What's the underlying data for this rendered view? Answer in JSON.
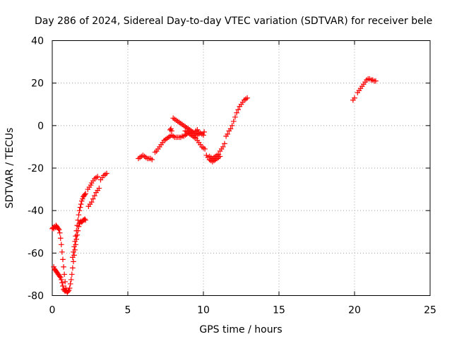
{
  "chart_data": {
    "type": "scatter",
    "title": "Day 286 of 2024, Sidereal Day-to-day VTEC variation (SDTVAR) for receiver bele",
    "xlabel": "GPS time / hours",
    "ylabel": "SDTVAR / TECUs",
    "xlim": [
      0,
      25
    ],
    "ylim": [
      -80,
      40
    ],
    "xticks": [
      0,
      5,
      10,
      15,
      20,
      25
    ],
    "yticks": [
      -80,
      -60,
      -40,
      -20,
      0,
      20,
      40
    ],
    "xtick_labels": [
      "0",
      "5",
      "10",
      "15",
      "20",
      "25"
    ],
    "ytick_labels": [
      "-80",
      "-60",
      "-40",
      "-20",
      "0",
      "20",
      "40"
    ],
    "grid": true,
    "marker": "+",
    "color": "#ff0000",
    "series": [
      {
        "name": "SDTVAR",
        "points": [
          [
            0.0,
            -48.5
          ],
          [
            0.05,
            -48.0
          ],
          [
            0.1,
            -48.5
          ],
          [
            0.15,
            -47.5
          ],
          [
            0.2,
            -48.0
          ],
          [
            0.25,
            -47.0
          ],
          [
            0.3,
            -47.5
          ],
          [
            0.35,
            -48.0
          ],
          [
            0.4,
            -48.5
          ],
          [
            0.45,
            -49.0
          ],
          [
            0.5,
            -50.5
          ],
          [
            0.55,
            -53.0
          ],
          [
            0.6,
            -56.0
          ],
          [
            0.65,
            -59.5
          ],
          [
            0.7,
            -63.0
          ],
          [
            0.75,
            -66.5
          ],
          [
            0.8,
            -70.0
          ],
          [
            0.85,
            -73.5
          ],
          [
            0.9,
            -76.5
          ],
          [
            0.95,
            -78.0
          ],
          [
            1.0,
            -78.5
          ],
          [
            1.05,
            -78.0
          ],
          [
            1.1,
            -77.5
          ],
          [
            0.1,
            -66.5
          ],
          [
            0.15,
            -67.5
          ],
          [
            0.2,
            -68.0
          ],
          [
            0.25,
            -68.5
          ],
          [
            0.3,
            -69.0
          ],
          [
            0.35,
            -69.5
          ],
          [
            0.4,
            -70.0
          ],
          [
            0.45,
            -70.5
          ],
          [
            0.5,
            -71.0
          ],
          [
            0.55,
            -71.5
          ],
          [
            0.6,
            -72.5
          ],
          [
            0.65,
            -74.0
          ],
          [
            0.7,
            -75.5
          ],
          [
            0.75,
            -77.0
          ],
          [
            0.8,
            -77.5
          ],
          [
            0.85,
            -78.0
          ],
          [
            0.9,
            -77.5
          ],
          [
            1.15,
            -76.5
          ],
          [
            1.2,
            -74.5
          ],
          [
            1.25,
            -72.5
          ],
          [
            1.3,
            -70.0
          ],
          [
            1.35,
            -67.0
          ],
          [
            1.4,
            -64.0
          ],
          [
            1.45,
            -61.0
          ],
          [
            1.5,
            -58.5
          ],
          [
            1.55,
            -56.0
          ],
          [
            1.6,
            -53.5
          ],
          [
            1.65,
            -51.5
          ],
          [
            1.7,
            -49.5
          ],
          [
            1.75,
            -47.5
          ],
          [
            1.8,
            -46.0
          ],
          [
            1.85,
            -45.5
          ],
          [
            1.9,
            -45.0
          ],
          [
            1.95,
            -45.5
          ],
          [
            2.0,
            -45.0
          ],
          [
            2.05,
            -44.5
          ],
          [
            2.1,
            -44.5
          ],
          [
            2.15,
            -44.0
          ],
          [
            2.2,
            -44.5
          ],
          [
            1.35,
            -62.0
          ],
          [
            1.4,
            -59.5
          ],
          [
            1.45,
            -57.0
          ],
          [
            1.5,
            -54.5
          ],
          [
            1.55,
            -52.0
          ],
          [
            1.6,
            -49.5
          ],
          [
            1.65,
            -47.0
          ],
          [
            1.7,
            -44.5
          ],
          [
            1.75,
            -42.0
          ],
          [
            1.8,
            -40.0
          ],
          [
            1.85,
            -38.5
          ],
          [
            1.9,
            -37.0
          ],
          [
            1.95,
            -35.5
          ],
          [
            2.0,
            -34.5
          ],
          [
            2.05,
            -33.5
          ],
          [
            2.1,
            -33.0
          ],
          [
            2.15,
            -32.5
          ],
          [
            2.2,
            -32.0
          ],
          [
            2.35,
            -30.0
          ],
          [
            2.45,
            -29.0
          ],
          [
            2.55,
            -28.0
          ],
          [
            2.6,
            -27.0
          ],
          [
            2.7,
            -26.0
          ],
          [
            2.8,
            -25.0
          ],
          [
            2.9,
            -24.5
          ],
          [
            3.0,
            -24.0
          ],
          [
            2.4,
            -38.0
          ],
          [
            2.5,
            -37.0
          ],
          [
            2.6,
            -36.0
          ],
          [
            2.7,
            -34.5
          ],
          [
            2.8,
            -33.0
          ],
          [
            2.9,
            -31.5
          ],
          [
            3.0,
            -30.5
          ],
          [
            3.1,
            -29.5
          ],
          [
            3.2,
            -25.5
          ],
          [
            3.3,
            -24.5
          ],
          [
            3.4,
            -23.5
          ],
          [
            3.5,
            -23.0
          ],
          [
            3.6,
            -22.5
          ],
          [
            5.7,
            -15.5
          ],
          [
            5.8,
            -15.0
          ],
          [
            5.9,
            -14.5
          ],
          [
            6.0,
            -14.0
          ],
          [
            6.1,
            -14.5
          ],
          [
            6.2,
            -15.0
          ],
          [
            6.3,
            -15.5
          ],
          [
            6.4,
            -15.5
          ],
          [
            6.5,
            -15.5
          ],
          [
            6.6,
            -16.0
          ],
          [
            6.8,
            -12.5
          ],
          [
            6.9,
            -12.0
          ],
          [
            7.0,
            -11.0
          ],
          [
            7.1,
            -10.0
          ],
          [
            7.2,
            -9.0
          ],
          [
            7.3,
            -8.0
          ],
          [
            7.4,
            -7.0
          ],
          [
            7.5,
            -6.5
          ],
          [
            7.6,
            -6.0
          ],
          [
            7.7,
            -5.5
          ],
          [
            7.8,
            -5.0
          ],
          [
            7.9,
            -4.5
          ],
          [
            8.0,
            -5.0
          ],
          [
            8.1,
            -5.5
          ],
          [
            8.2,
            -5.5
          ],
          [
            8.3,
            -5.5
          ],
          [
            8.4,
            -5.5
          ],
          [
            8.5,
            -5.5
          ],
          [
            8.6,
            -5.0
          ],
          [
            8.7,
            -5.0
          ],
          [
            8.8,
            -4.5
          ],
          [
            8.9,
            -4.0
          ],
          [
            7.8,
            -2.0
          ],
          [
            7.85,
            -1.5
          ],
          [
            7.9,
            -2.5
          ],
          [
            8.0,
            3.5
          ],
          [
            8.1,
            3.0
          ],
          [
            8.2,
            2.5
          ],
          [
            8.3,
            2.0
          ],
          [
            8.4,
            1.5
          ],
          [
            8.5,
            1.0
          ],
          [
            8.6,
            0.5
          ],
          [
            8.7,
            0.0
          ],
          [
            8.8,
            -0.5
          ],
          [
            8.9,
            -1.0
          ],
          [
            9.0,
            -1.5
          ],
          [
            9.1,
            -2.0
          ],
          [
            9.2,
            -2.5
          ],
          [
            8.8,
            -2.5
          ],
          [
            8.9,
            -3.0
          ],
          [
            9.0,
            -3.5
          ],
          [
            9.1,
            -4.0
          ],
          [
            9.2,
            -3.5
          ],
          [
            9.3,
            -3.0
          ],
          [
            9.4,
            -3.5
          ],
          [
            9.5,
            -4.0
          ],
          [
            9.6,
            -4.5
          ],
          [
            9.7,
            -4.0
          ],
          [
            9.8,
            -3.5
          ],
          [
            9.9,
            -4.0
          ],
          [
            10.0,
            -4.5
          ],
          [
            10.05,
            -3.0
          ],
          [
            9.5,
            -2.5
          ],
          [
            9.6,
            -2.0
          ],
          [
            9.7,
            -3.0
          ],
          [
            9.2,
            -4.5
          ],
          [
            9.3,
            -5.0
          ],
          [
            9.4,
            -5.5
          ],
          [
            9.5,
            -6.0
          ],
          [
            9.6,
            -7.0
          ],
          [
            9.7,
            -8.0
          ],
          [
            9.8,
            -9.0
          ],
          [
            9.9,
            -10.0
          ],
          [
            10.0,
            -10.5
          ],
          [
            10.1,
            -11.0
          ],
          [
            10.2,
            -14.0
          ],
          [
            10.3,
            -15.0
          ],
          [
            10.4,
            -16.0
          ],
          [
            10.5,
            -16.5
          ],
          [
            10.6,
            -17.0
          ],
          [
            10.7,
            -16.5
          ],
          [
            10.8,
            -16.0
          ],
          [
            10.9,
            -15.5
          ],
          [
            11.0,
            -15.0
          ],
          [
            11.1,
            -14.5
          ],
          [
            10.4,
            -14.5
          ],
          [
            10.5,
            -15.0
          ],
          [
            10.6,
            -15.5
          ],
          [
            10.7,
            -15.0
          ],
          [
            10.8,
            -14.5
          ],
          [
            10.9,
            -14.0
          ],
          [
            11.0,
            -13.5
          ],
          [
            11.1,
            -12.0
          ],
          [
            11.2,
            -11.0
          ],
          [
            11.3,
            -10.0
          ],
          [
            11.4,
            -8.5
          ],
          [
            11.5,
            -5.0
          ],
          [
            11.6,
            -4.0
          ],
          [
            11.7,
            -2.5
          ],
          [
            11.8,
            -1.5
          ],
          [
            11.9,
            0.0
          ],
          [
            12.0,
            2.0
          ],
          [
            12.1,
            4.0
          ],
          [
            12.2,
            6.0
          ],
          [
            12.3,
            7.5
          ],
          [
            12.4,
            9.0
          ],
          [
            12.5,
            10.0
          ],
          [
            12.6,
            11.0
          ],
          [
            12.7,
            12.0
          ],
          [
            12.8,
            12.5
          ],
          [
            12.9,
            13.0
          ],
          [
            19.9,
            12.0
          ],
          [
            20.0,
            13.0
          ],
          [
            20.2,
            15.5
          ],
          [
            20.3,
            16.5
          ],
          [
            20.4,
            17.5
          ],
          [
            20.5,
            18.5
          ],
          [
            20.6,
            19.5
          ],
          [
            20.7,
            20.5
          ],
          [
            20.8,
            21.5
          ],
          [
            20.9,
            22.0
          ],
          [
            21.0,
            22.0
          ],
          [
            21.1,
            21.5
          ],
          [
            21.2,
            21.5
          ],
          [
            21.3,
            21.0
          ],
          [
            21.4,
            21.0
          ]
        ]
      }
    ]
  }
}
